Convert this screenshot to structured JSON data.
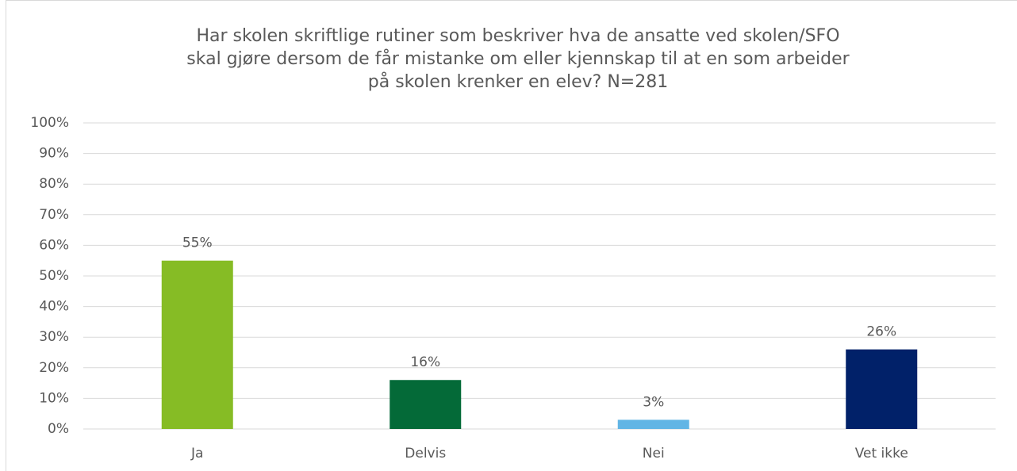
{
  "chart_data": {
    "type": "bar",
    "title": [
      "Har skolen skriftlige rutiner som beskriver hva de ansatte ved skolen/SFO",
      "skal gjøre dersom de får mistanke om eller kjennskap til at en som arbeider",
      "på skolen krenker en elev? N=281"
    ],
    "categories": [
      "Ja",
      "Delvis",
      "Nei",
      "Vet ikke"
    ],
    "values": [
      55,
      16,
      3,
      26
    ],
    "value_labels": [
      "55%",
      "16%",
      "3%",
      "26%"
    ],
    "colors": [
      "#86bc25",
      "#046a38",
      "#62b5e5",
      "#012169"
    ],
    "ylim": [
      0,
      100
    ],
    "yticks": [
      {
        "value": 0,
        "label": "0%"
      },
      {
        "value": 10,
        "label": "10%"
      },
      {
        "value": 20,
        "label": "20%"
      },
      {
        "value": 30,
        "label": "30%"
      },
      {
        "value": 40,
        "label": "40%"
      },
      {
        "value": 50,
        "label": "50%"
      },
      {
        "value": 60,
        "label": "60%"
      },
      {
        "value": 70,
        "label": "70%"
      },
      {
        "value": 80,
        "label": "80%"
      },
      {
        "value": 90,
        "label": "90%"
      },
      {
        "value": 100,
        "label": "100%"
      }
    ],
    "grid": true
  }
}
